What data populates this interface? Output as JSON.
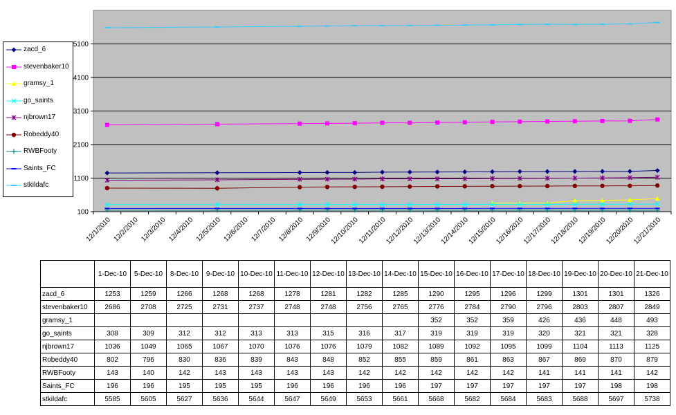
{
  "chart_data": {
    "type": "line",
    "title": "",
    "xlabel": "",
    "ylabel": "",
    "ylim": [
      100,
      6100
    ],
    "yticks": [
      100,
      1100,
      2100,
      3100,
      4100,
      5100
    ],
    "x_tick_labels": [
      "12/1/2010",
      "12/2/2010",
      "12/3/2010",
      "12/4/2010",
      "12/5/2010",
      "12/6/2010",
      "12/7/2010",
      "12/8/2010",
      "12/9/2010",
      "12/10/2010",
      "12/11/2010",
      "12/12/2010",
      "12/13/2010",
      "12/14/2010",
      "12/15/2010",
      "12/16/2010",
      "12/17/2010",
      "12/18/2010",
      "12/19/2010",
      "12/20/2010",
      "12/21/2010"
    ],
    "x_dates": [
      "2010-12-01",
      "2010-12-05",
      "2010-12-08",
      "2010-12-09",
      "2010-12-10",
      "2010-12-11",
      "2010-12-12",
      "2010-12-13",
      "2010-12-14",
      "2010-12-15",
      "2010-12-16",
      "2010-12-17",
      "2010-12-18",
      "2010-12-19",
      "2010-12-20",
      "2010-12-21"
    ],
    "table_headers": [
      "1-Dec-10",
      "5-Dec-10",
      "8-Dec-10",
      "9-Dec-10",
      "10-Dec-10",
      "11-Dec-10",
      "12-Dec-10",
      "13-Dec-10",
      "14-Dec-10",
      "15-Dec-10",
      "16-Dec-10",
      "17-Dec-10",
      "18-Dec-10",
      "19-Dec-10",
      "20-Dec-10",
      "21-Dec-10"
    ],
    "legend_position": "left",
    "grid": true,
    "series": [
      {
        "name": "zacd_6",
        "legend_label": "zacd_6",
        "color": "#000080",
        "marker": "diamond",
        "values": [
          1253,
          1259,
          1266,
          1268,
          1268,
          1278,
          1281,
          1282,
          1285,
          1290,
          1295,
          1296,
          1299,
          1301,
          1301,
          1326
        ]
      },
      {
        "name": "stevenbaker10",
        "legend_label": "stevenbaker10",
        "color": "#ff00ff",
        "marker": "square",
        "values": [
          2686,
          2708,
          2725,
          2731,
          2737,
          2748,
          2748,
          2756,
          2765,
          2776,
          2784,
          2790,
          2796,
          2803,
          2807,
          2849
        ]
      },
      {
        "name": "gramsy_1",
        "legend_label": "gramsy_1",
        "color": "#ffff00",
        "marker": "triangle",
        "values": [
          null,
          null,
          null,
          null,
          null,
          null,
          null,
          null,
          null,
          352,
          352,
          359,
          426,
          436,
          448,
          493
        ]
      },
      {
        "name": "go_saints",
        "legend_label": "go_saints",
        "color": "#00ffff",
        "marker": "x",
        "values": [
          308,
          309,
          312,
          312,
          313,
          313,
          315,
          316,
          317,
          319,
          319,
          319,
          320,
          321,
          321,
          328
        ]
      },
      {
        "name": "njbrown17",
        "legend_label": "njbrown17",
        "color": "#800080",
        "marker": "star",
        "values": [
          1036,
          1049,
          1065,
          1067,
          1070,
          1076,
          1076,
          1079,
          1082,
          1089,
          1092,
          1095,
          1099,
          1104,
          1113,
          1125
        ]
      },
      {
        "name": "Robeddy40",
        "legend_label": "Robeddy40",
        "color": "#800000",
        "marker": "circle",
        "values": [
          802,
          796,
          830,
          836,
          839,
          843,
          848,
          852,
          855,
          859,
          861,
          863,
          867,
          869,
          870,
          879
        ]
      },
      {
        "name": "RWBFooty",
        "legend_label": "RWBFooty",
        "color": "#008080",
        "marker": "plus",
        "values": [
          143,
          140,
          142,
          143,
          143,
          143,
          143,
          142,
          142,
          142,
          142,
          142,
          141,
          141,
          141,
          142
        ]
      },
      {
        "name": "Saints_FC",
        "legend_label": "Saints_FC",
        "color": "#0000ff",
        "marker": "dash",
        "values": [
          196,
          196,
          195,
          195,
          195,
          196,
          196,
          196,
          196,
          197,
          197,
          197,
          197,
          197,
          198,
          198
        ]
      },
      {
        "name": "stkildafc",
        "legend_label": "stkildafc",
        "color": "#33ccff",
        "marker": "dash",
        "values": [
          5585,
          5605,
          5627,
          5636,
          5644,
          5647,
          5649,
          5653,
          5661,
          5668,
          5682,
          5684,
          5683,
          5688,
          5697,
          5738
        ]
      }
    ]
  }
}
